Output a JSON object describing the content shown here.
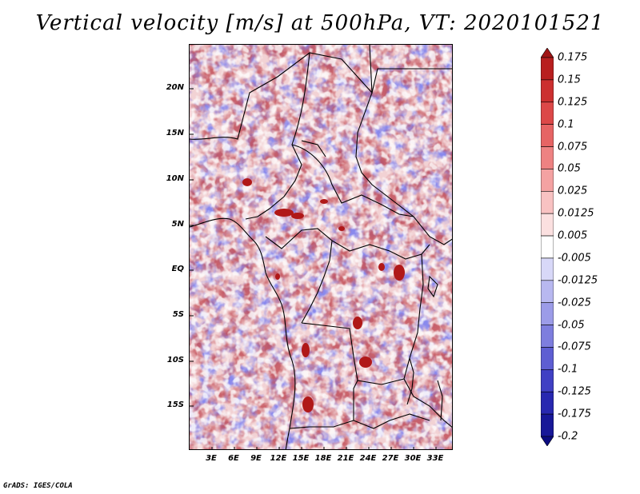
{
  "title": "Vertical velocity [m/s] at 500hPa, VT: 2020101521",
  "lat_labels": [
    "20N",
    "15N",
    "10N",
    "5N",
    "EQ",
    "5S",
    "10S",
    "15S"
  ],
  "lon_labels": [
    "3E",
    "6E",
    "9E",
    "12E",
    "15E",
    "18E",
    "21E",
    "24E",
    "27E",
    "30E",
    "33E"
  ],
  "colorbar": {
    "labels": [
      "0.175",
      "0.15",
      "0.125",
      "0.1",
      "0.075",
      "0.05",
      "0.025",
      "0.0125",
      "0.005",
      "-0.005",
      "-0.0125",
      "-0.025",
      "-0.05",
      "-0.075",
      "-0.1",
      "-0.125",
      "-0.175",
      "-0.2"
    ],
    "colors": [
      "#a01414",
      "#b81f1f",
      "#cc3030",
      "#dc4848",
      "#e66464",
      "#ee8282",
      "#f4a2a2",
      "#f8c2c2",
      "#fbe0e0",
      "#ffffff",
      "#d8d8f8",
      "#b8b8f0",
      "#9c9ce8",
      "#7e7ede",
      "#5e5ed2",
      "#4040c4",
      "#2828b0",
      "#181898",
      "#0c0c80"
    ]
  },
  "footer": "GrADS: IGES/COLA"
}
